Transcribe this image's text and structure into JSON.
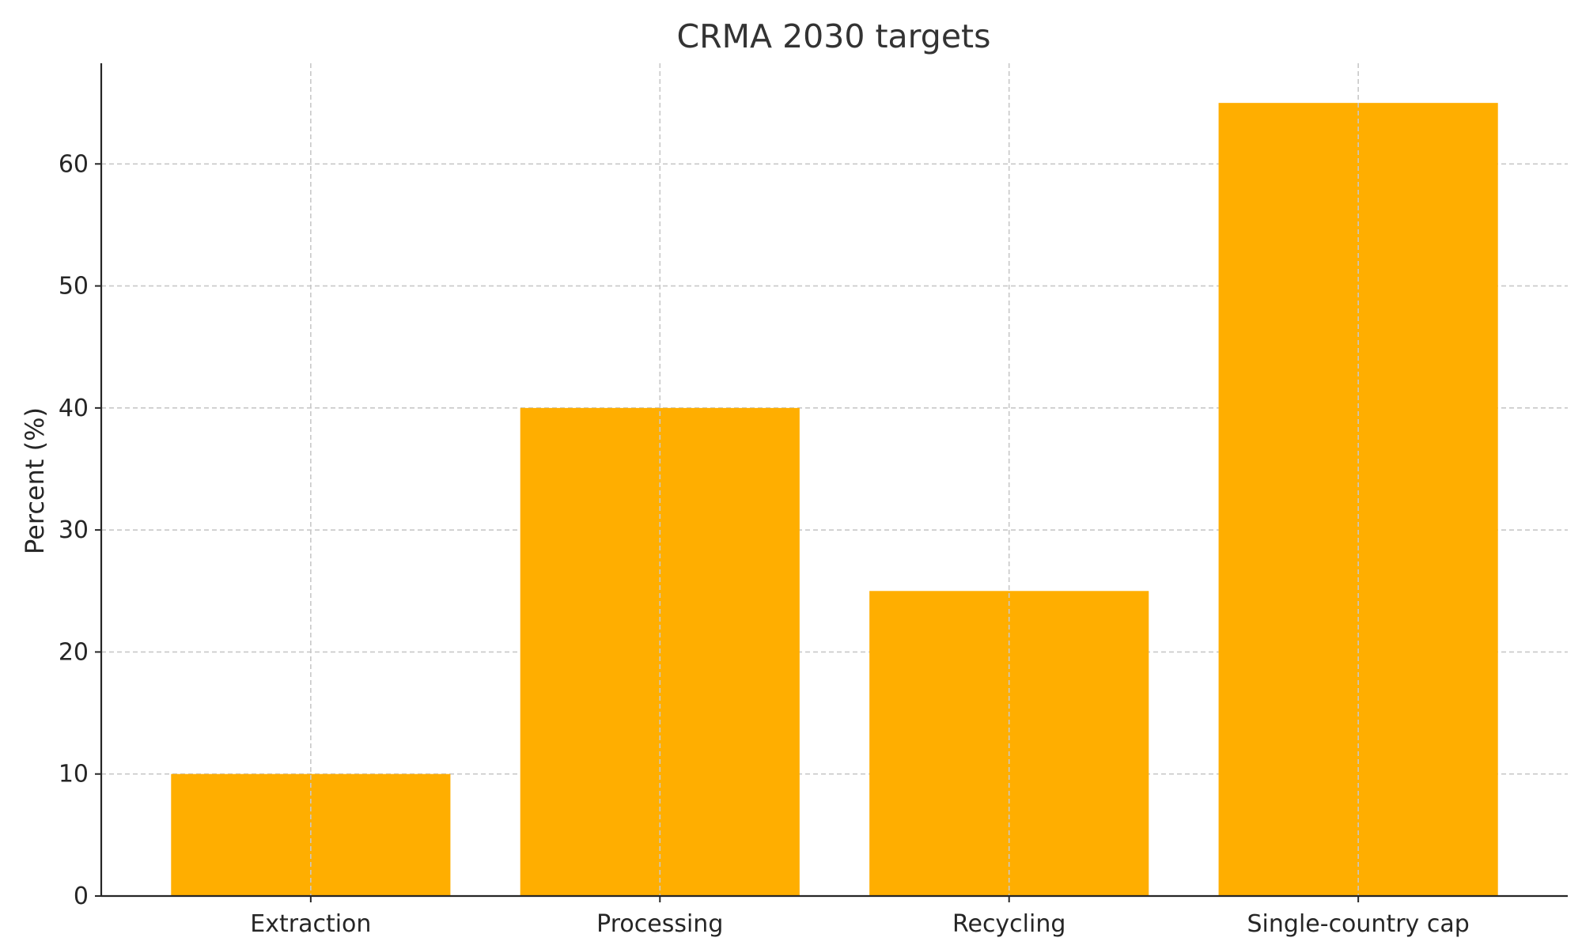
{
  "chart_data": {
    "type": "bar",
    "title": "CRMA 2030 targets",
    "xlabel": "",
    "ylabel": "Percent (%)",
    "categories": [
      "Extraction",
      "Processing",
      "Recycling",
      "Single-country cap"
    ],
    "values": [
      10,
      40,
      25,
      65
    ],
    "ylim": [
      0,
      68.25
    ],
    "yticks": [
      0,
      10,
      20,
      30,
      40,
      50,
      60
    ],
    "grid": true,
    "bar_color": "#FFAE00",
    "grid_color": "#C8C8C8"
  }
}
